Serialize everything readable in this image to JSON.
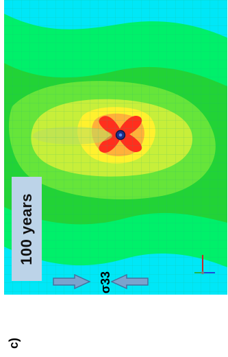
{
  "figure": {
    "panel_letter": "c)",
    "time_label": "100 years",
    "stress_label": "σ33",
    "colors": {
      "outer_band": "#00e7f7",
      "outer_green": "#00f06a",
      "mid_green": "#22d336",
      "light_green": "#66e53a",
      "yellow_green": "#c7ef3a",
      "yellow": "#fff12e",
      "orange": "#ffb13a",
      "red": "#ff2f1d",
      "mesh_line": "#1aa87c",
      "label_box": "#bcd3e8",
      "arrow_fill": "#7aa3cd",
      "arrow_stroke": "#45729f",
      "hole": "#1f2f8a"
    },
    "axis_triad_icon": "axis-triad-icon"
  }
}
